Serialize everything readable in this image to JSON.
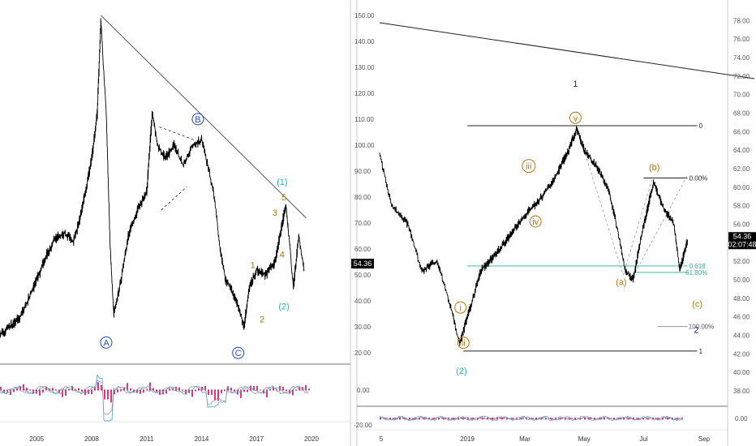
{
  "colors": {
    "price": "#000000",
    "axis_text": "#555555",
    "blue_label": "#1f4fbd",
    "navy_label": "#1a1a7a",
    "orange_label": "#b5770f",
    "cyan_label": "#21b5c9",
    "fib_line": "#2fae9a",
    "badge_bg": "#000000",
    "hist_pink": "#e0115f",
    "osc_line_1": "#4aa3df",
    "osc_line_2": "#999999"
  },
  "chart_data": [
    {
      "type": "line",
      "panel": "left",
      "series": [
        {
          "x": [
            "2003",
            "2003.5",
            "2004",
            "2004.5",
            "2005",
            "2005.5",
            "2006",
            "2006.5",
            "2007",
            "2007.3",
            "2007.6",
            "2008",
            "2008.3",
            "2008.5",
            "2008.8",
            "2009",
            "2009.2",
            "2009.5",
            "2010",
            "2010.5",
            "2011",
            "2011.3",
            "2011.6",
            "2012",
            "2012.5",
            "2013",
            "2013.5",
            "2014",
            "2014.4",
            "2014.7",
            "2015",
            "2015.3",
            "2015.6",
            "2016",
            "2016.3",
            "2016.6",
            "2017",
            "2017.5",
            "2018",
            "2018.4",
            "2018.6",
            "2018.8",
            "2019",
            "2019.3",
            "2019.6"
          ],
          "y": [
            27,
            30,
            33,
            40,
            48,
            57,
            64,
            66,
            63,
            70,
            80,
            95,
            112,
            148,
            110,
            62,
            35,
            44,
            65,
            75,
            82,
            112,
            100,
            95,
            100,
            92,
            100,
            102,
            90,
            80,
            60,
            48,
            45,
            38,
            30,
            45,
            52,
            50,
            55,
            70,
            77,
            62,
            45,
            65,
            52
          ]
        }
      ],
      "ylim": [
        16,
        154
      ],
      "yticks": [
        "150.00",
        "140.00",
        "130.00",
        "120.00",
        "110.00",
        "100.00",
        "90.00",
        "80.00",
        "70.00",
        "60.00",
        "50.00",
        "40.00",
        "30.00",
        "20.00"
      ],
      "xticks": [
        "2005",
        "2008",
        "2011",
        "2014",
        "2017",
        "2020"
      ],
      "last_value": "54.36",
      "wave_labels": [
        {
          "text": "B",
          "style": "circle",
          "color": "blue",
          "x": "2013.8",
          "y": 110
        },
        {
          "text": "A",
          "style": "circle",
          "color": "blue",
          "x": "2008.8",
          "y": 24
        },
        {
          "text": "C",
          "style": "circle",
          "color": "blue",
          "x": "2016",
          "y": 20
        },
        {
          "text": "(1)",
          "style": "plain",
          "color": "cyan",
          "x": "2018.4",
          "y": 86
        },
        {
          "text": "(2)",
          "style": "plain",
          "color": "cyan",
          "x": "2018.5",
          "y": 38
        },
        {
          "text": "5",
          "style": "plain",
          "color": "orange",
          "x": "2018.5",
          "y": 80
        },
        {
          "text": "3",
          "style": "plain",
          "color": "orange",
          "x": "2018",
          "y": 74
        },
        {
          "text": "4",
          "style": "plain",
          "color": "orange",
          "x": "2018.4",
          "y": 58
        },
        {
          "text": "1",
          "style": "plain",
          "color": "orange",
          "x": "2016.8",
          "y": 54
        },
        {
          "text": "2",
          "style": "plain",
          "color": "orange",
          "x": "2017.3",
          "y": 33
        }
      ],
      "oscillator": {
        "yticks": [
          "0.00",
          "-20.00"
        ]
      }
    },
    {
      "type": "line",
      "panel": "right",
      "series": [
        {
          "x": [
            "2018-10-03",
            "2018-10-15",
            "2018-11-01",
            "2018-11-15",
            "2018-12-01",
            "2018-12-15",
            "2018-12-24",
            "2019-01-01",
            "2019-01-15",
            "2019-02-01",
            "2019-02-15",
            "2019-03-01",
            "2019-03-15",
            "2019-04-01",
            "2019-04-15",
            "2019-04-23",
            "2019-05-01",
            "2019-05-15",
            "2019-05-25",
            "2019-06-01",
            "2019-06-12",
            "2019-06-20",
            "2019-07-01",
            "2019-07-11",
            "2019-07-20",
            "2019-08-01",
            "2019-08-07",
            "2019-08-15"
          ],
          "y": [
            63.5,
            58,
            56,
            51,
            52,
            47,
            43,
            46,
            51,
            53,
            55,
            57,
            58.5,
            61,
            64,
            66.3,
            64,
            62,
            60,
            57,
            51,
            50,
            56,
            60.5,
            58,
            56,
            51,
            54.36
          ]
        }
      ],
      "ylim": [
        36.6,
        79.7
      ],
      "yticks": [
        "78.00",
        "76.00",
        "74.00",
        "72.00",
        "70.00",
        "68.00",
        "66.00",
        "64.00",
        "62.00",
        "60.00",
        "58.00",
        "56.00",
        "54.00",
        "52.00",
        "50.00",
        "48.00",
        "46.00",
        "44.00",
        "42.00",
        "40.00",
        "38.00"
      ],
      "xticks": [
        "5",
        "2019",
        "Mar",
        "May",
        "Jul",
        "Sep"
      ],
      "last_value": "54.36",
      "countdown": "02:07:48",
      "fib_levels": [
        {
          "label": "0",
          "value": 66.65
        },
        {
          "label": "0.00%",
          "value": 61.0
        },
        {
          "label": "0.618",
          "value": 51.5
        },
        {
          "label": "61.80%",
          "value": 50.8
        },
        {
          "label": "100.00%",
          "value": 44.95
        },
        {
          "label": "1",
          "value": 42.3
        }
      ],
      "wave_labels": [
        {
          "text": "1",
          "style": "plain",
          "color": "navy",
          "x": "2019-04-22",
          "y": 71.2
        },
        {
          "text": "v",
          "style": "circle",
          "color": "orange",
          "x": "2019-04-22",
          "y": 67.5
        },
        {
          "text": "iii",
          "style": "circle",
          "color": "orange",
          "x": "2019-03-05",
          "y": 62.3
        },
        {
          "text": "iv",
          "style": "circle",
          "color": "orange",
          "x": "2019-03-12",
          "y": 56.3
        },
        {
          "text": "i",
          "style": "circle",
          "color": "orange",
          "x": "2018-12-25",
          "y": 47.0
        },
        {
          "text": "ii",
          "style": "circle",
          "color": "orange",
          "x": "2018-12-28",
          "y": 43.2
        },
        {
          "text": "(2)",
          "style": "plain",
          "color": "cyan",
          "x": "2018-12-26",
          "y": 40.2
        },
        {
          "text": "(a)",
          "style": "plain",
          "color": "orange",
          "x": "2019-06-08",
          "y": 49.8
        },
        {
          "text": "(b)",
          "style": "plain",
          "color": "orange",
          "x": "2019-07-12",
          "y": 62.2
        },
        {
          "text": "(c)",
          "style": "plain",
          "color": "orange",
          "x": "2019-08-25",
          "y": 47.4
        },
        {
          "text": "2",
          "style": "plain",
          "color": "navy",
          "x": "2019-08-24",
          "y": 44.6
        }
      ],
      "oscillator": {
        "yticks": [
          "0.00"
        ]
      }
    }
  ]
}
